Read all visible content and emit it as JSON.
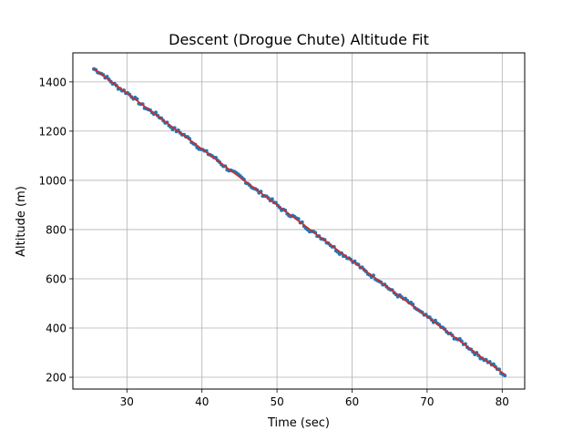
{
  "chart_data": {
    "type": "scatter",
    "title": "Descent (Drogue Chute) Altitude Fit",
    "xlabel": "Time (sec)",
    "ylabel": "Altitude (m)",
    "xlim": [
      22.8,
      83.0
    ],
    "ylim": [
      152,
      1518
    ],
    "x_ticks": [
      30,
      40,
      50,
      60,
      70,
      80
    ],
    "y_ticks": [
      200,
      400,
      600,
      800,
      1000,
      1200,
      1400
    ],
    "x_tick_labels": [
      "30",
      "40",
      "50",
      "60",
      "70",
      "80"
    ],
    "y_tick_labels": [
      "200",
      "400",
      "600",
      "800",
      "1000",
      "1200",
      "1400"
    ],
    "grid": true,
    "legend": "none",
    "series": [
      {
        "kind": "scatter",
        "color": "#1f77b4",
        "x_start": 25.6,
        "x_end": 80.4,
        "x_step": 0.25,
        "fit_slope": -22.7,
        "fit_intercept": 2035.0
      },
      {
        "kind": "line",
        "color": "#d62728",
        "x": [
          25.6,
          80.4
        ],
        "y": [
          1453.9,
          209.9
        ]
      }
    ]
  }
}
